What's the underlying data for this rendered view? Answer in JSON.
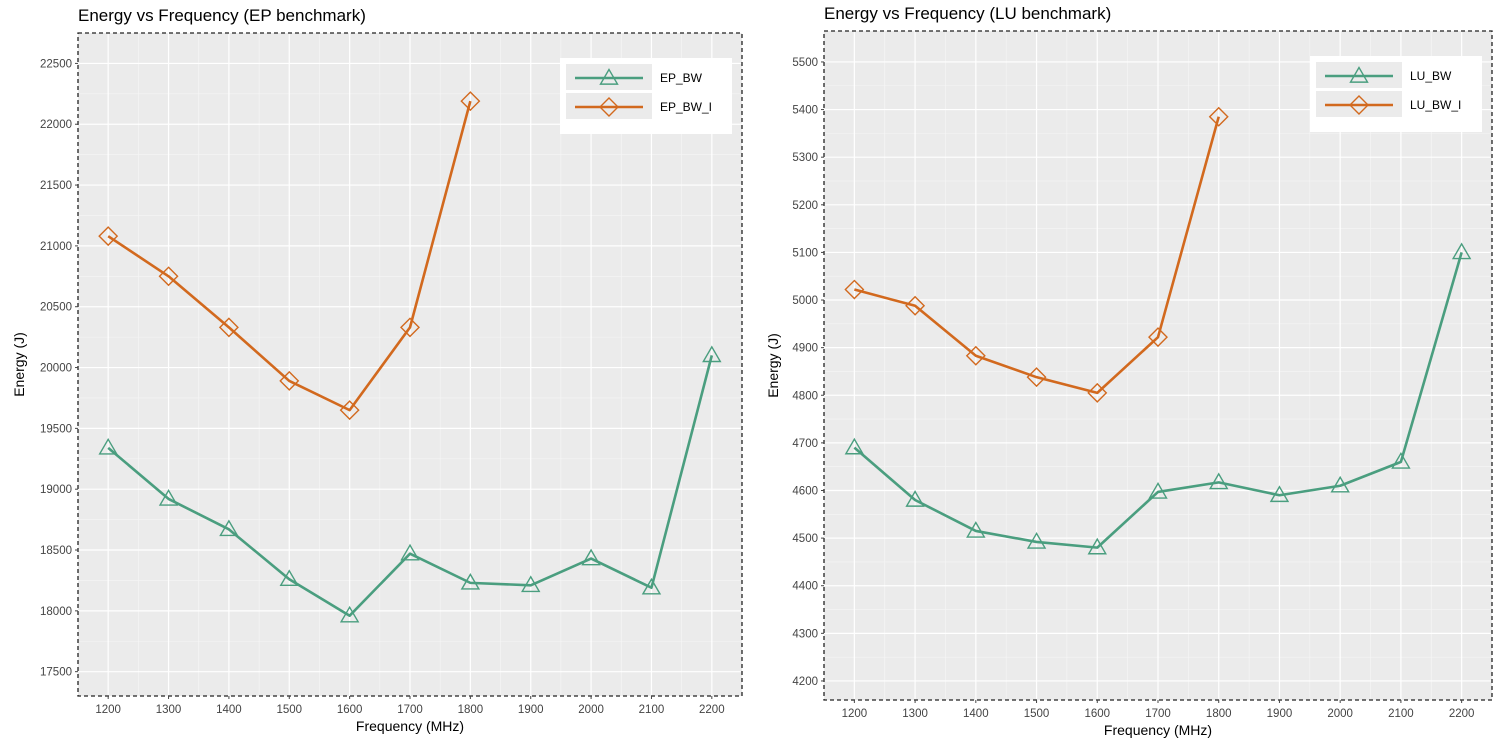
{
  "chart_data": [
    {
      "type": "line",
      "title": "Energy vs Frequency (EP benchmark)",
      "xlabel": "Frequency (MHz)",
      "ylabel": "Energy (J)",
      "xticks": [
        1200,
        1300,
        1400,
        1500,
        1600,
        1700,
        1800,
        1900,
        2000,
        2100,
        2200
      ],
      "yticks": [
        17500,
        18000,
        18500,
        19000,
        19500,
        20000,
        20500,
        21000,
        21500,
        22000,
        22500
      ],
      "xlim": [
        1150,
        2250
      ],
      "ylim": [
        17300,
        22750
      ],
      "legend_position": "top-right",
      "grid": true,
      "series": [
        {
          "name": "EP_BW",
          "color": "#4a9e7f",
          "marker": "triangle",
          "x": [
            1200,
            1300,
            1400,
            1500,
            1600,
            1700,
            1800,
            1900,
            2000,
            2100,
            2200
          ],
          "y": [
            19340,
            18920,
            18670,
            18260,
            17960,
            18470,
            18230,
            18210,
            18430,
            18190,
            20100
          ]
        },
        {
          "name": "EP_BW_I",
          "color": "#d2691e",
          "marker": "diamond",
          "x": [
            1200,
            1300,
            1400,
            1500,
            1600,
            1700,
            1800
          ],
          "y": [
            21080,
            20750,
            20330,
            19890,
            19650,
            20330,
            22190
          ]
        }
      ]
    },
    {
      "type": "line",
      "title": "Energy vs Frequency (LU benchmark)",
      "xlabel": "Frequency (MHz)",
      "ylabel": "Energy (J)",
      "xticks": [
        1200,
        1300,
        1400,
        1500,
        1600,
        1700,
        1800,
        1900,
        2000,
        2100,
        2200
      ],
      "yticks": [
        4200,
        4300,
        4400,
        4500,
        4600,
        4700,
        4800,
        4900,
        5000,
        5100,
        5200,
        5300,
        5400,
        5500
      ],
      "xlim": [
        1150,
        2250
      ],
      "ylim": [
        4160,
        5565
      ],
      "legend_position": "top-right",
      "grid": true,
      "series": [
        {
          "name": "LU_BW",
          "color": "#4a9e7f",
          "marker": "triangle",
          "x": [
            1200,
            1300,
            1400,
            1500,
            1600,
            1700,
            1800,
            1900,
            2000,
            2100,
            2200
          ],
          "y": [
            4690,
            4580,
            4515,
            4492,
            4480,
            4597,
            4617,
            4590,
            4610,
            4660,
            5100
          ]
        },
        {
          "name": "LU_BW_I",
          "color": "#d2691e",
          "marker": "diamond",
          "x": [
            1200,
            1300,
            1400,
            1500,
            1600,
            1700,
            1800
          ],
          "y": [
            5022,
            4988,
            4883,
            4838,
            4805,
            4922,
            5385
          ]
        }
      ]
    }
  ]
}
